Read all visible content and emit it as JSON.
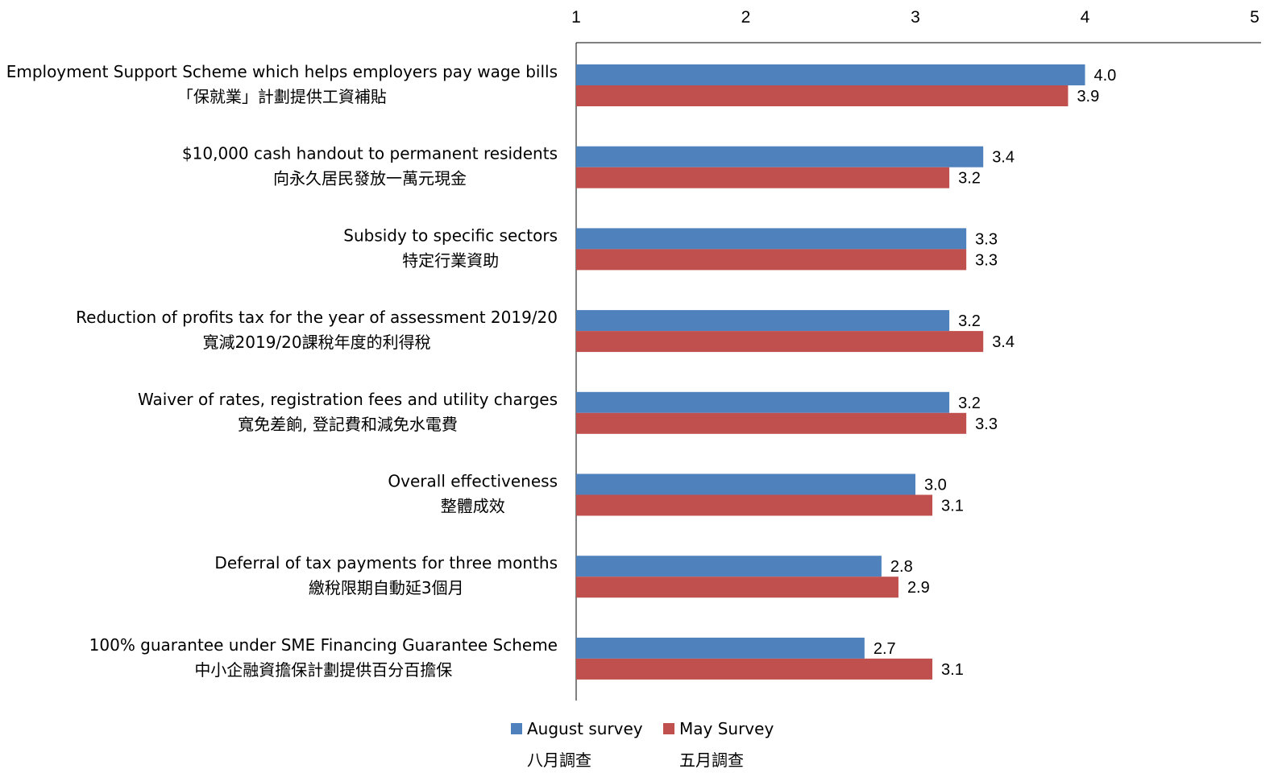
{
  "chart_data": {
    "type": "bar",
    "orientation": "horizontal",
    "xlim": [
      1,
      5
    ],
    "x_ticks": [
      "1",
      "2",
      "3",
      "4",
      "5"
    ],
    "x_axis_position": "top",
    "grid": false,
    "legend_position": "bottom",
    "categories": [
      {
        "en": "Employment Support Scheme which helps employers pay wage bills",
        "zh": "「保就業」計劃提供工資補貼"
      },
      {
        "en": "$10,000 cash handout to permanent residents",
        "zh": "向永久居民發放一萬元現金"
      },
      {
        "en": "Subsidy to specific sectors",
        "zh": "特定行業資助"
      },
      {
        "en": "Reduction of profits tax for the year of assessment 2019/20",
        "zh": "寬減2019/20課稅年度的利得稅"
      },
      {
        "en": "Waiver of rates, registration fees and utility charges",
        "zh": "寬免差餉, 登記費和減免水電費"
      },
      {
        "en": "Overall effectiveness",
        "zh": "整體成效"
      },
      {
        "en": "Deferral of tax payments for three months",
        "zh": "繳稅限期自動延3個月"
      },
      {
        "en": "100% guarantee under SME Financing Guarantee Scheme",
        "zh": "中小企融資擔保計劃提供百分百擔保"
      }
    ],
    "series": [
      {
        "name": "August survey",
        "name_zh": "八月調查",
        "color": "#4F81BD",
        "values": [
          4.0,
          3.4,
          3.3,
          3.2,
          3.2,
          3.0,
          2.8,
          2.7
        ],
        "labels": [
          "4.0",
          "3.4",
          "3.3",
          "3.2",
          "3.2",
          "3.0",
          "2.8",
          "2.7"
        ]
      },
      {
        "name": "May Survey",
        "name_zh": "五月調查",
        "color": "#C0504D",
        "values": [
          3.9,
          3.2,
          3.3,
          3.4,
          3.3,
          3.1,
          2.9,
          3.1
        ],
        "labels": [
          "3.9",
          "3.2",
          "3.3",
          "3.4",
          "3.3",
          "3.1",
          "2.9",
          "3.1"
        ]
      }
    ]
  }
}
